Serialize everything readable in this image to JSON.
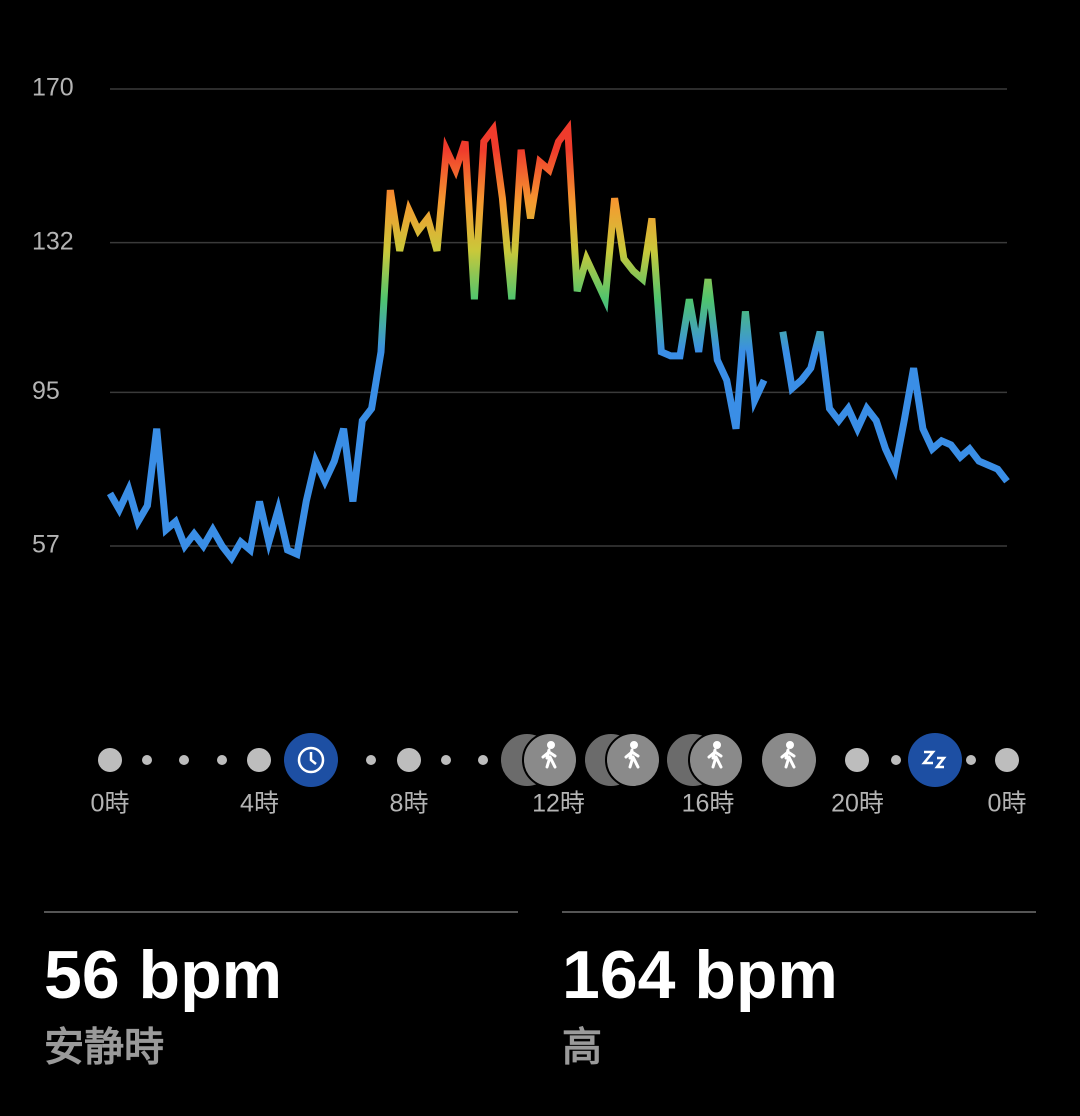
{
  "chart_data": {
    "type": "line",
    "x": [
      0,
      0.25,
      0.5,
      0.75,
      1,
      1.25,
      1.5,
      1.75,
      2,
      2.25,
      2.5,
      2.75,
      3,
      3.25,
      3.5,
      3.75,
      4,
      4.25,
      4.5,
      4.75,
      5,
      5.25,
      5.5,
      5.75,
      6,
      6.25,
      6.5,
      6.75,
      7,
      7.25,
      7.5,
      7.75,
      8,
      8.25,
      8.5,
      8.75,
      9,
      9.25,
      9.5,
      9.75,
      10,
      10.25,
      10.5,
      10.75,
      11,
      11.25,
      11.5,
      11.75,
      12,
      12.25,
      12.5,
      12.75,
      13,
      13.25,
      13.5,
      13.75,
      14,
      14.25,
      14.5,
      14.75,
      15,
      15.25,
      15.5,
      15.75,
      16,
      16.25,
      16.5,
      16.75,
      17,
      17.25,
      17.5,
      17.75,
      18,
      18.25,
      18.5,
      18.75,
      19,
      19.25,
      19.5,
      19.75,
      20,
      20.25,
      20.5,
      20.75,
      21,
      21.25,
      21.5,
      21.75,
      22,
      22.25,
      22.5,
      22.75,
      23,
      23.25,
      23.5,
      23.75,
      24
    ],
    "values": [
      70,
      66,
      71,
      63,
      67,
      86,
      61,
      63,
      57,
      60,
      57,
      61,
      57,
      54,
      58,
      56,
      68,
      58,
      66,
      56,
      55,
      68,
      78,
      73,
      78,
      86,
      68,
      88,
      91,
      105,
      145,
      130,
      140,
      135,
      138,
      130,
      155,
      150,
      157,
      118,
      157,
      160,
      143,
      118,
      155,
      138,
      152,
      150,
      157,
      160,
      120,
      128,
      123,
      118,
      143,
      128,
      125,
      123,
      138,
      105,
      104,
      104,
      118,
      105,
      123,
      103,
      98,
      86,
      115,
      93,
      98,
      null,
      110,
      96,
      98,
      101,
      110,
      91,
      88,
      91,
      86,
      91,
      88,
      81,
      76,
      88,
      101,
      86,
      81,
      83,
      82,
      79,
      81,
      78,
      77,
      76,
      73
    ],
    "color_scale": [
      {
        "value": 155,
        "color": "#ef3b2c"
      },
      {
        "value": 142,
        "color": "#f59a30"
      },
      {
        "value": 130,
        "color": "#c9c83a"
      },
      {
        "value": 118,
        "color": "#4fc46e"
      },
      {
        "value": 105,
        "color": "#3a8ee6"
      }
    ],
    "xlim": [
      0,
      24
    ],
    "xticks": [
      {
        "value": 0,
        "label": "0時"
      },
      {
        "value": 4,
        "label": "4時"
      },
      {
        "value": 8,
        "label": "8時"
      },
      {
        "value": 12,
        "label": "12時"
      },
      {
        "value": 16,
        "label": "16時"
      },
      {
        "value": 20,
        "label": "20時"
      },
      {
        "value": 24,
        "label": "0時"
      }
    ],
    "ylim": [
      57,
      170
    ],
    "yticks": [
      57,
      95,
      132,
      170
    ],
    "grid": true
  },
  "stats": [
    {
      "value": "56 bpm",
      "label": "安静時"
    },
    {
      "value": "164 bpm",
      "label": "高"
    }
  ]
}
